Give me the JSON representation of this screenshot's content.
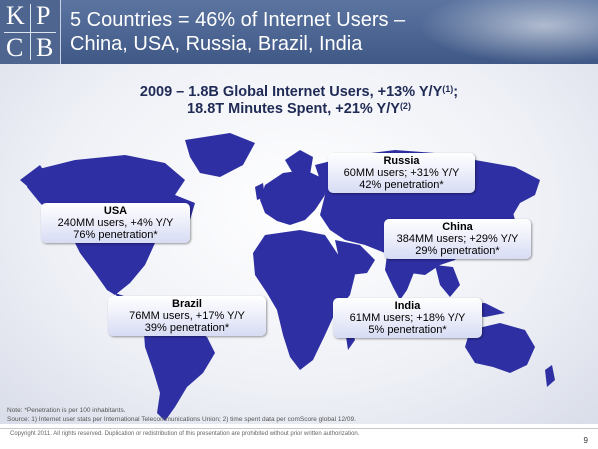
{
  "logo": {
    "letters": [
      "K",
      "P",
      "C",
      "B"
    ]
  },
  "slide": {
    "title": "5 Countries = 46% of Internet Users –\nChina, USA, Russia, Brazil, India",
    "headline_line1_pre": "2009 – 1.8B Global Internet Users, +13% Y/Y",
    "headline_line1_sup": "(1)",
    "headline_line1_post": ";",
    "headline_line2_pre": "18.8T Minutes Spent, +21% Y/Y",
    "headline_line2_sup": "(2)"
  },
  "callouts": {
    "usa": {
      "name": "USA",
      "line1": "240MM users, +4% Y/Y",
      "line2": "76% penetration*"
    },
    "russia": {
      "name": "Russia",
      "line1": "60MM users; +31% Y/Y",
      "line2": "42% penetration*"
    },
    "china": {
      "name": "China",
      "line1": "384MM users; +29% Y/Y",
      "line2": "29% penetration*"
    },
    "brazil": {
      "name": "Brazil",
      "line1": "76MM users, +17% Y/Y",
      "line2": "39% penetration*"
    },
    "india": {
      "name": "India",
      "line1": "61MM users; +18% Y/Y",
      "line2": "5% penetration*"
    }
  },
  "notes": {
    "note": "Note: *Penetration is per 100 inhabitants.",
    "source": "Source: 1) Internet user stats per International Telecommunications Union; 2) time spent data per comScore global 12/09.",
    "copyright": "Copyright 2011. All rights reserved. Duplication or redistribution of this presentation are prohibited without prior written authorization.",
    "page_number": "9"
  },
  "colors": {
    "header": "#4b6391",
    "map_fill": "#2e2fa3",
    "headline": "#1f2a55"
  }
}
